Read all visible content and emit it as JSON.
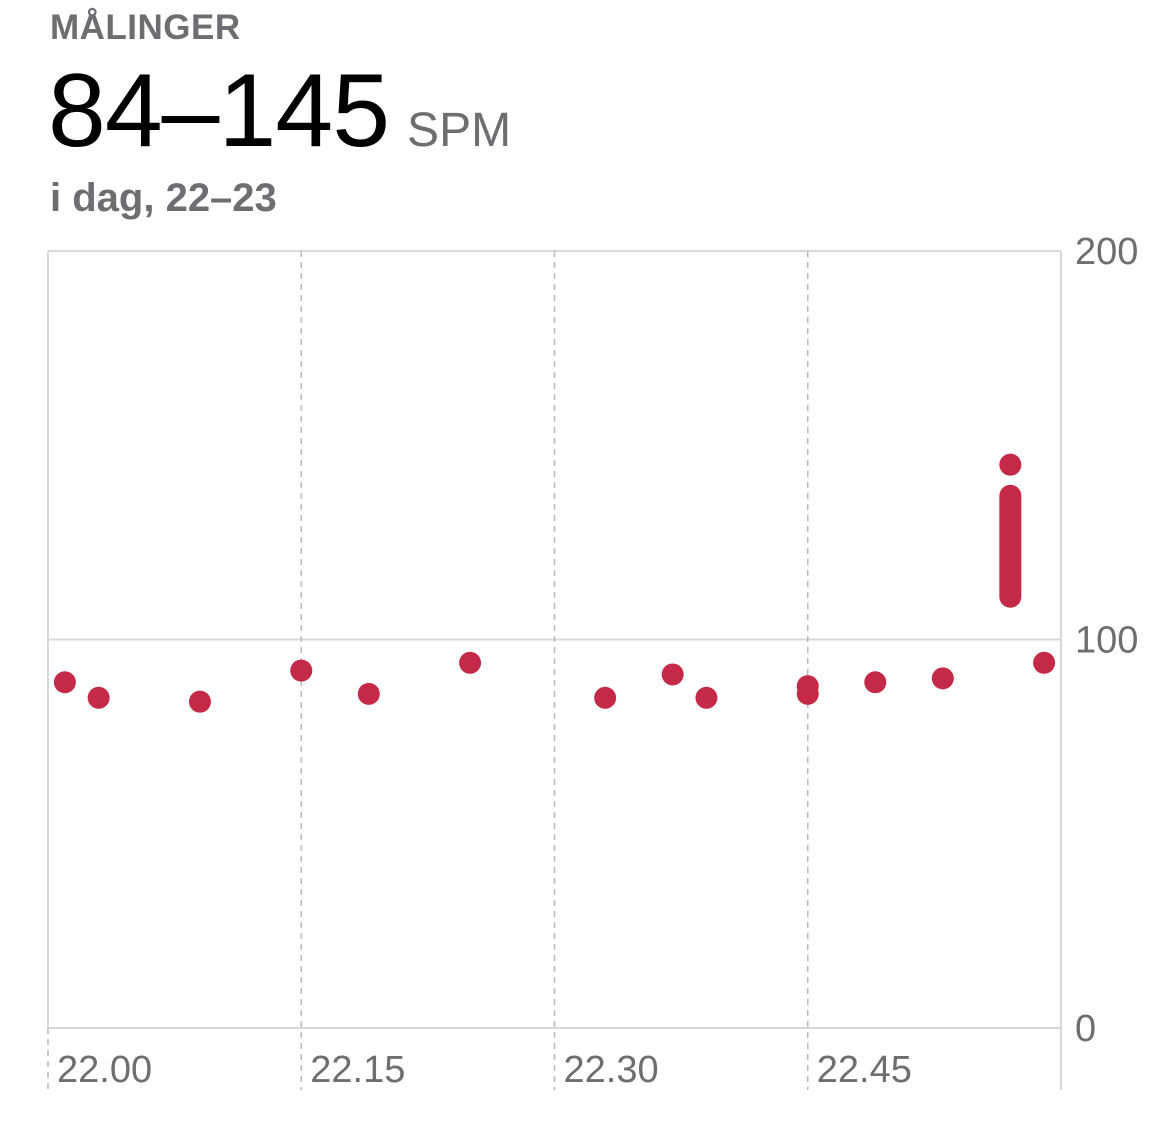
{
  "header": {
    "label": "MÅLINGER",
    "value": "84–145",
    "unit": "SPM",
    "date": "i dag, 22–23"
  },
  "colors": {
    "accent": "#c42a48",
    "grid": "#d8d8dc",
    "axis_text": "#6d6d72"
  },
  "chart_data": {
    "type": "scatter",
    "title": "",
    "xlabel": "",
    "ylabel": "",
    "ylim": [
      0,
      200
    ],
    "xlim": [
      "22.00",
      "23.00"
    ],
    "y_ticks": [
      "200",
      "100",
      "0"
    ],
    "x_tick_labels": [
      "22.00",
      "22.15",
      "22.30",
      "22.45"
    ],
    "grid": true,
    "series": [
      {
        "points": [
          {
            "x": "22.01",
            "y": 89
          },
          {
            "x": "22.03",
            "y": 85
          },
          {
            "x": "22.09",
            "y": 84
          },
          {
            "x": "22.15",
            "y": 92
          },
          {
            "x": "22.19",
            "y": 86
          },
          {
            "x": "22.25",
            "y": 94
          },
          {
            "x": "22.33",
            "y": 85
          },
          {
            "x": "22.37",
            "y": 91
          },
          {
            "x": "22.39",
            "y": 85
          },
          {
            "x": "22.45",
            "y": 88
          },
          {
            "x": "22.45",
            "y": 86
          },
          {
            "x": "22.49",
            "y": 89
          },
          {
            "x": "22.53",
            "y": 90
          },
          {
            "x": "22.57",
            "y": 145
          },
          {
            "x": "22.59",
            "y": 94
          }
        ]
      }
    ],
    "ranges": [
      {
        "x": "22.57",
        "y_min": 111,
        "y_max": 137
      }
    ]
  }
}
